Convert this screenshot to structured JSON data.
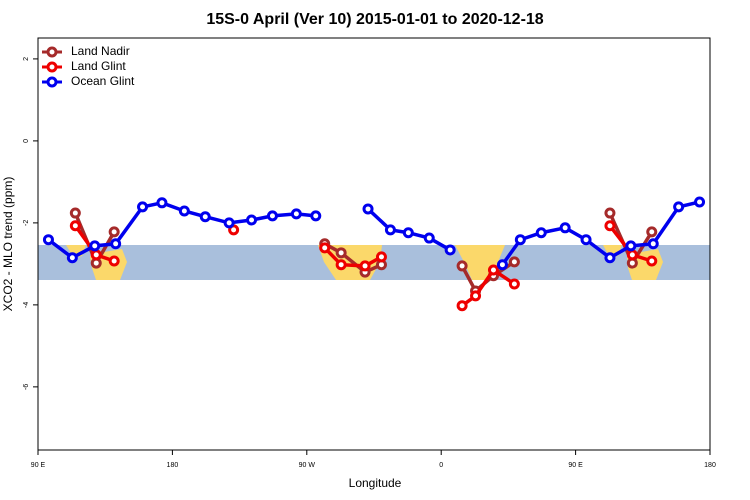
{
  "chart_data": {
    "type": "line",
    "title": "15S-0 April (Ver 10)   2015-01-01 to 2020-12-18",
    "xlabel": "Longitude",
    "ylabel": "XCO2 - MLO trend (ppm)",
    "xlim": [
      90,
      540
    ],
    "xticks": [
      {
        "value": 90,
        "label": "90 E"
      },
      180,
      {
        "value": 270,
        "label": "90 W"
      },
      {
        "value": 360,
        "label": "0"
      },
      {
        "value": 450,
        "label": "90 E"
      },
      {
        "value": 540,
        "label": "180"
      }
    ],
    "ylim": [
      -7.54,
      2.51
    ],
    "yticks": [
      2,
      0,
      -2,
      -4,
      -6
    ],
    "legend": "top-left",
    "series": [
      {
        "name": "Land Nadir",
        "color": "#a52a2a",
        "x": [
          115,
          129,
          141,
          null,
          282,
          293,
          309,
          320,
          null,
          374,
          383,
          395,
          409,
          null,
          473,
          488,
          501
        ],
        "values": [
          -1.76,
          -2.98,
          -2.22,
          null,
          -2.51,
          -2.73,
          -3.2,
          -3.02,
          null,
          -3.05,
          -3.66,
          -3.29,
          -2.95,
          null,
          -1.76,
          -2.98,
          -2.22
        ]
      },
      {
        "name": "Land Glint",
        "color": "#ee0000",
        "x": [
          115,
          129,
          141,
          null,
          221,
          null,
          282,
          293,
          309,
          320,
          null,
          374,
          383,
          395,
          409,
          null,
          473,
          488,
          501
        ],
        "values": [
          -2.07,
          -2.78,
          -2.93,
          null,
          -2.17,
          null,
          -2.61,
          -3.02,
          -3.05,
          -2.83,
          null,
          -4.02,
          -3.78,
          -3.15,
          -3.49,
          null,
          -2.07,
          -2.78,
          -2.93
        ]
      },
      {
        "name": "Ocean Glint",
        "color": "#0000ee",
        "x": [
          97,
          113,
          128,
          142,
          160,
          173,
          188,
          202,
          218,
          233,
          247,
          263,
          276,
          null,
          311,
          326,
          338,
          352,
          366,
          null,
          401,
          413,
          427,
          443,
          457,
          473,
          487,
          502,
          519,
          533
        ],
        "values": [
          -2.41,
          -2.85,
          -2.56,
          -2.51,
          -1.61,
          -1.51,
          -1.71,
          -1.85,
          -2.0,
          -1.93,
          -1.83,
          -1.78,
          -1.83,
          null,
          -1.66,
          -2.17,
          -2.24,
          -2.37,
          -2.66,
          null,
          -3.02,
          -2.41,
          -2.24,
          -2.12,
          -2.41,
          -2.85,
          -2.56,
          -2.51,
          -1.61,
          -1.49
        ]
      }
    ]
  }
}
